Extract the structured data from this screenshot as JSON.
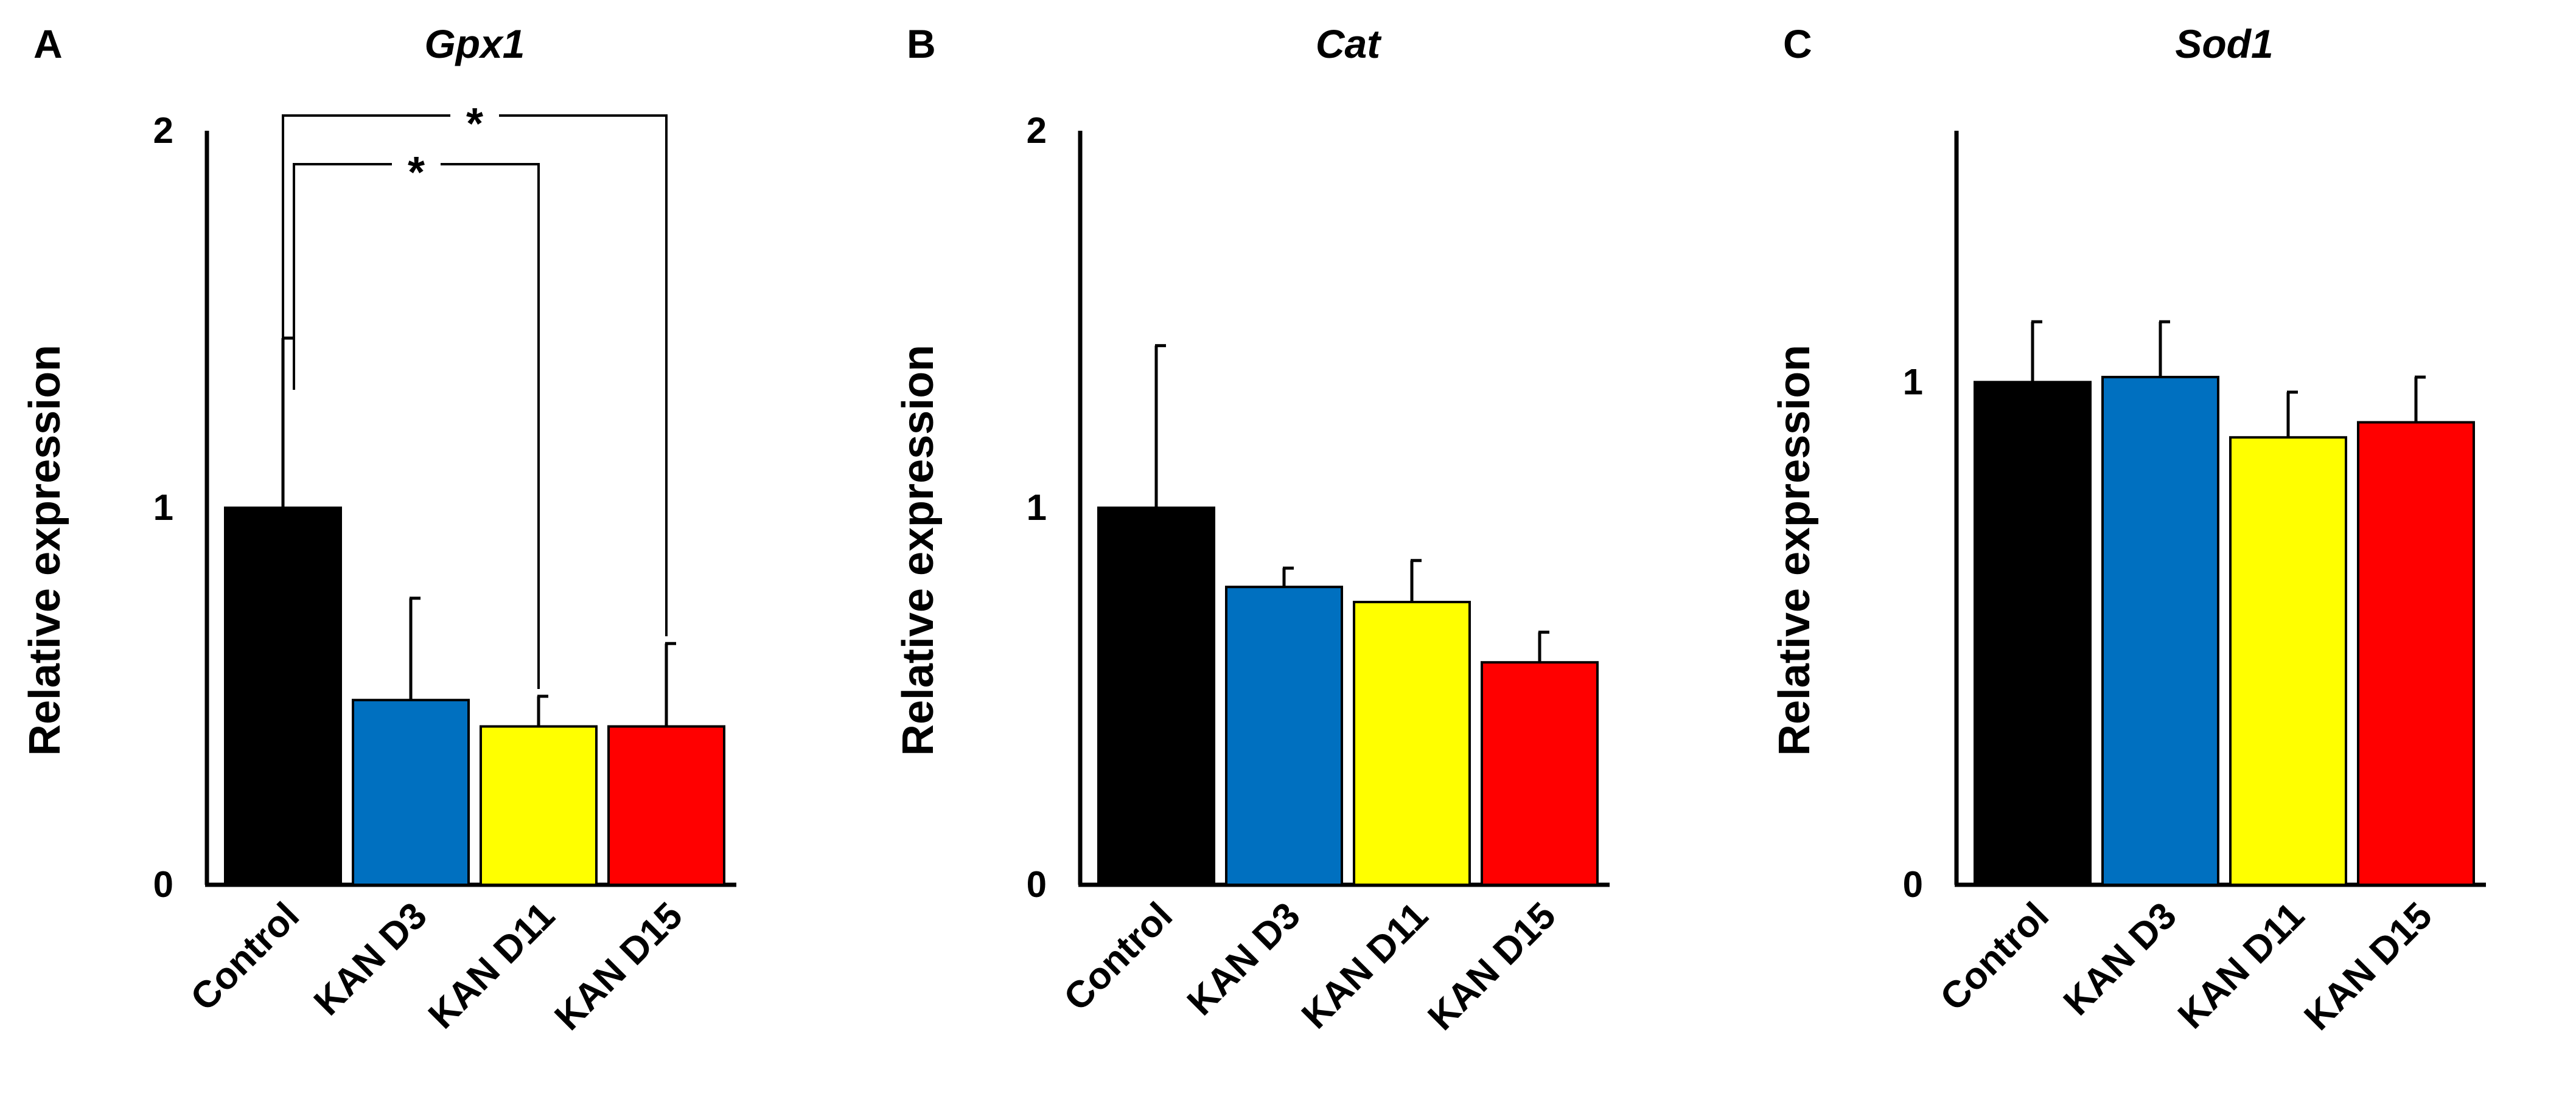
{
  "colors": {
    "control": "#000000",
    "kan_d3": "#0070C0",
    "kan_d11": "#FFFF00",
    "kan_d15": "#FF0000",
    "axis": "#000000"
  },
  "chart_data": [
    {
      "panel": "A",
      "type": "bar",
      "title": "Gpx1",
      "xlabel": "",
      "ylabel": "Relative expression",
      "ylim": [
        0,
        2
      ],
      "yticks": [
        "0",
        "1",
        "2"
      ],
      "grid": false,
      "categories": [
        "Control",
        "KAN D3",
        "KAN D11",
        "KAN D15"
      ],
      "values": [
        1.0,
        0.49,
        0.42,
        0.42
      ],
      "errors": [
        0.45,
        0.27,
        0.08,
        0.22
      ],
      "significance": [
        {
          "from": "Control",
          "to": "KAN D11",
          "label": "*"
        },
        {
          "from": "Control",
          "to": "KAN D15",
          "label": "*"
        }
      ]
    },
    {
      "panel": "B",
      "type": "bar",
      "title": "Cat",
      "xlabel": "",
      "ylabel": "Relative expression",
      "ylim": [
        0,
        2
      ],
      "yticks": [
        "0",
        "1",
        "2"
      ],
      "grid": false,
      "categories": [
        "Control",
        "KAN D3",
        "KAN D11",
        "KAN D15"
      ],
      "values": [
        1.0,
        0.79,
        0.75,
        0.59
      ],
      "errors": [
        0.43,
        0.05,
        0.11,
        0.08
      ],
      "significance": []
    },
    {
      "panel": "C",
      "type": "bar",
      "title": "Sod1",
      "xlabel": "",
      "ylabel": "Relative expression",
      "ylim": [
        0,
        1.5
      ],
      "yticks": [
        "0",
        "1"
      ],
      "grid": false,
      "categories": [
        "Control",
        "KAN D3",
        "KAN D11",
        "KAN D15"
      ],
      "values": [
        1.0,
        1.01,
        0.89,
        0.92
      ],
      "errors": [
        0.12,
        0.11,
        0.09,
        0.09
      ],
      "significance": []
    }
  ]
}
